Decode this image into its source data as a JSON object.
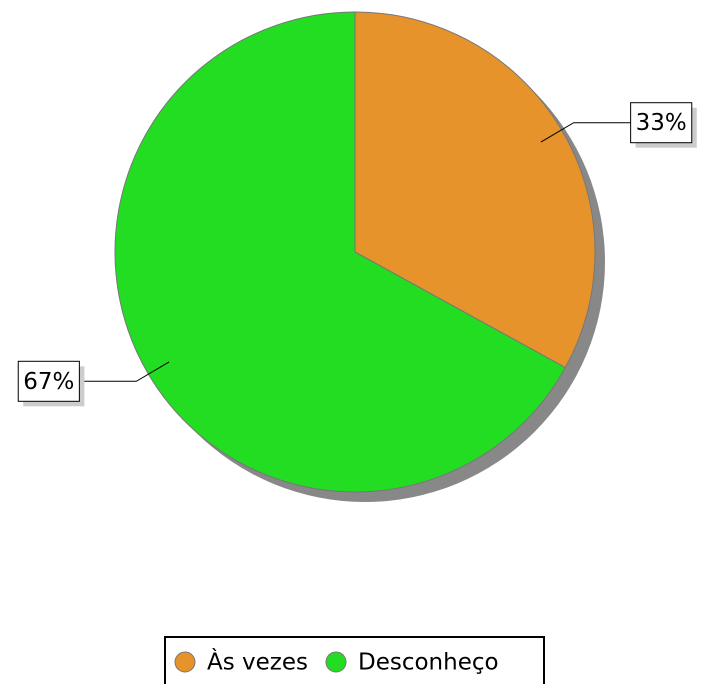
{
  "chart_data": {
    "type": "pie",
    "categories": [
      "Às vezes",
      "Desconheço"
    ],
    "values": [
      33,
      67
    ],
    "value_labels": [
      "33%",
      "67%"
    ],
    "colors": [
      "#e6932c",
      "#22dd22"
    ],
    "legend": "bottom"
  }
}
